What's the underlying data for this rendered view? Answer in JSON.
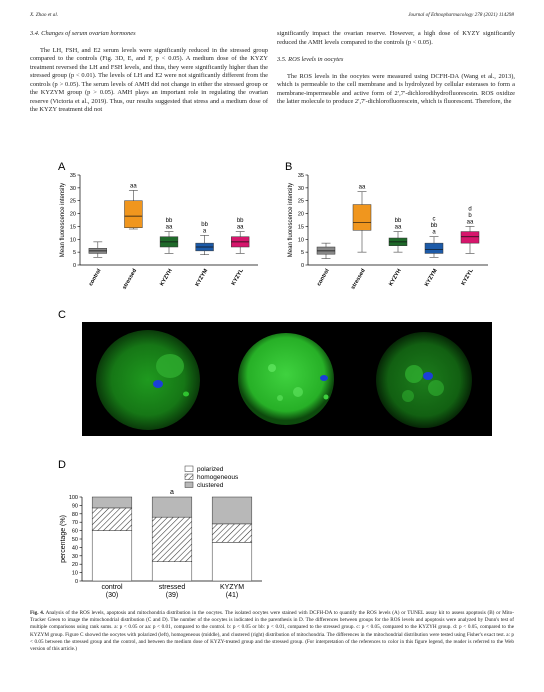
{
  "header": {
    "left": "X. Zhao et al.",
    "right": "Journal of Ethnopharmacology 278 (2021) 114298"
  },
  "left_col": {
    "section": "3.4.  Changes of serum ovarian hormones",
    "p1": "The LH, FSH, and E2 serum levels were significantly reduced in the stressed group compared to the controls (Fig. 3D, E, and F, p < 0.05). A medium dose of the KYZY treatment reversed the LH and FSH levels, and thus, they were significantly higher than the stressed group (p < 0.01). The levels of LH and E2 were not significantly different from the controls (p > 0.05). The serum levels of AMH did not change in either the stressed group or the KYZYM group (p > 0.05). AMH plays an important role in regulating the ovarian reserve (Victoria et al., 2019). Thus, our results suggested that stress and a medium dose of the KYZY treatment did not"
  },
  "right_col": {
    "p0": "significantly impact the ovarian reserve. However, a high dose of KYZY significantly reduced the AMH levels compared to the controls (p < 0.05).",
    "section": "3.5.  ROS levels in oocytes",
    "p1": "The ROS levels in the oocytes were measured using DCFH-DA (Wang et al., 2013), which is permeable to the cell membrane and is hydrolyzed by cellular esterases to form a membrane-impermeable and active form of 2′,7′-dichlorodihydrofluorescein. ROS oxidize the latter molecule to produce 2′,7′-dichlorofluorescein, which is fluorescent. Therefore, the"
  },
  "panels": {
    "A": "A",
    "B": "B",
    "C": "C",
    "D": "D"
  },
  "chart_data": [
    {
      "type": "box",
      "panel": "A",
      "ylabel": "Mean fluorescence intensity",
      "ylim": [
        0,
        35
      ],
      "yticks": [
        0,
        5,
        10,
        15,
        20,
        25,
        30,
        35
      ],
      "categories": [
        "control",
        "stressed",
        "KYZYH",
        "KYZYM",
        "KYZYL"
      ],
      "colors": [
        "#888888",
        "#f0961e",
        "#1f6a2a",
        "#1c5aa8",
        "#d6166c"
      ],
      "boxes": [
        {
          "whislo": 3,
          "q1": 4.5,
          "med": 5.5,
          "q3": 6.5,
          "whishi": 9,
          "labels": []
        },
        {
          "whislo": 14,
          "q1": 14.5,
          "med": 19,
          "q3": 25,
          "whishi": 29,
          "labels": [
            "aa"
          ]
        },
        {
          "whislo": 4.5,
          "q1": 7,
          "med": 9,
          "q3": 11,
          "whishi": 13,
          "labels": [
            "bb",
            "aa"
          ]
        },
        {
          "whislo": 4,
          "q1": 5.5,
          "med": 7,
          "q3": 8.5,
          "whishi": 11.5,
          "labels": [
            "bb",
            "a"
          ]
        },
        {
          "whislo": 4.5,
          "q1": 7,
          "med": 9,
          "q3": 11,
          "whishi": 13,
          "labels": [
            "bb",
            "aa"
          ]
        }
      ]
    },
    {
      "type": "box",
      "panel": "B",
      "ylabel": "Mean fluorescence intensity",
      "ylim": [
        0,
        35
      ],
      "yticks": [
        0,
        5,
        10,
        15,
        20,
        25,
        30,
        35
      ],
      "categories": [
        "control",
        "stressed",
        "KYZYH",
        "KYZYM",
        "KYZYL"
      ],
      "colors": [
        "#888888",
        "#f0961e",
        "#1f6a2a",
        "#1c5aa8",
        "#d6166c"
      ],
      "boxes": [
        {
          "whislo": 2.5,
          "q1": 4.2,
          "med": 5.5,
          "q3": 7,
          "whishi": 8.5,
          "labels": []
        },
        {
          "whislo": 5,
          "q1": 13.5,
          "med": 16.5,
          "q3": 23.5,
          "whishi": 28.5,
          "labels": [
            "aa"
          ]
        },
        {
          "whislo": 5,
          "q1": 7.5,
          "med": 9,
          "q3": 10.5,
          "whishi": 13,
          "labels": [
            "bb",
            "aa"
          ]
        },
        {
          "whislo": 3,
          "q1": 4.5,
          "med": 6,
          "q3": 8.5,
          "whishi": 11,
          "labels": [
            "c",
            "bb",
            "a"
          ]
        },
        {
          "whislo": 4.5,
          "q1": 8.5,
          "med": 11,
          "q3": 13,
          "whishi": 15,
          "labels": [
            "d",
            "b",
            "aa"
          ]
        }
      ]
    },
    {
      "type": "stacked_bar",
      "panel": "D",
      "ylabel": "percentage (%)",
      "ylim": [
        0,
        100
      ],
      "yticks": [
        0,
        10,
        20,
        30,
        40,
        50,
        60,
        70,
        80,
        90,
        100
      ],
      "categories": [
        "control",
        "stressed",
        "KYZYM"
      ],
      "counts": [
        "(30)",
        "(39)",
        "(41)"
      ],
      "series": [
        {
          "name": "polarized",
          "values": [
            60,
            23,
            46
          ]
        },
        {
          "name": "homogeneous",
          "values": [
            27,
            53,
            22
          ]
        },
        {
          "name": "clustered",
          "values": [
            13,
            24,
            32
          ]
        }
      ],
      "annotations": [
        "",
        "a",
        ""
      ]
    }
  ],
  "caption": {
    "label": "Fig. 4.",
    "text": " Analysis of the ROS levels, apoptosis and mitochondria distribution in the oocytes. The isolated oocytes were stained with DCFH-DA to quantify the ROS levels (A) or TUNEL assay kit to assess apoptosis (B) or Mito-Tracker Green to image the mitochondrial distribution (C and D). The number of the oocytes is indicated in the parenthesis in D. The differences between groups for the ROS levels and apoptosis were analyzed by Dunn's test of multiple comparisons using rank sums. a: p < 0.05 or aa: p < 0.01, compared to the control. b: p < 0.05 or bb: p < 0.01, compared to the stressed group. c: p < 0.05, compared to the KYZYH group. d: p < 0.05, compared to the KYZYM group. Figure C showed the oocytes with polarized (left), homogeneous (middle), and clustered (right) distribution of mitochondria. The differences in the mitochondrial distribution were tested using Fisher's exact test. a: p < 0.05 between the stressed group and the control, and between the medium dose of KYZY-treated group and the stressed group. (For interpretation of the references to color in this figure legend, the reader is referred to the Web version of this article.)"
  }
}
